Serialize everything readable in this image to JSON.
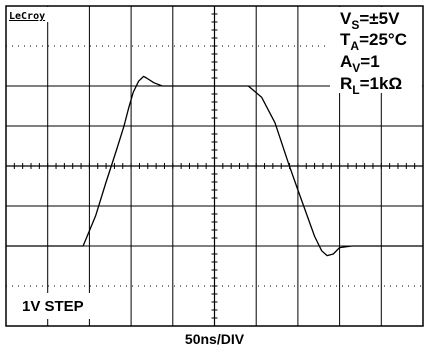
{
  "brand": "LeCroy",
  "conditions": [
    {
      "main": "V",
      "sub": "S",
      "rest": "=±5V"
    },
    {
      "main": "T",
      "sub": "A",
      "rest": "=25°C"
    },
    {
      "main": "A",
      "sub": "V",
      "rest": "=1"
    },
    {
      "main": "R",
      "sub": "L",
      "rest": "=1kΩ"
    }
  ],
  "step_label": "1V STEP",
  "x_scale_label": "50ns/DIV",
  "colors": {
    "trace": "#000000",
    "grid": "#000000",
    "background": "#ffffff"
  },
  "chart_data": {
    "type": "line",
    "title": "",
    "xlabel": "50ns/DIV",
    "ylabel": "",
    "x_unit": "ns",
    "y_unit": "V",
    "xlim": [
      0,
      500
    ],
    "ylim": [
      -1,
      1
    ],
    "grid": true,
    "x_divisions": 10,
    "y_divisions": 8,
    "series": [
      {
        "values_x": [
          0,
          185,
          215,
          240,
          265,
          283,
          295,
          305,
          318,
          330,
          337,
          355,
          375,
          405,
          440,
          485,
          535,
          560,
          581,
          613,
          645,
          677,
          700,
          740,
          757,
          770,
          785,
          800,
          830,
          870,
          1000
        ],
        "values_y": [
          -0.5,
          -0.5,
          -0.31,
          -0.1,
          0.1,
          0.25,
          0.37,
          0.46,
          0.53,
          0.56,
          0.55,
          0.52,
          0.5,
          0.5,
          0.5,
          0.5,
          0.5,
          0.5,
          0.5,
          0.43,
          0.27,
          0.02,
          -0.15,
          -0.44,
          -0.53,
          -0.56,
          -0.55,
          -0.51,
          -0.5,
          -0.5,
          -0.5
        ]
      }
    ]
  }
}
